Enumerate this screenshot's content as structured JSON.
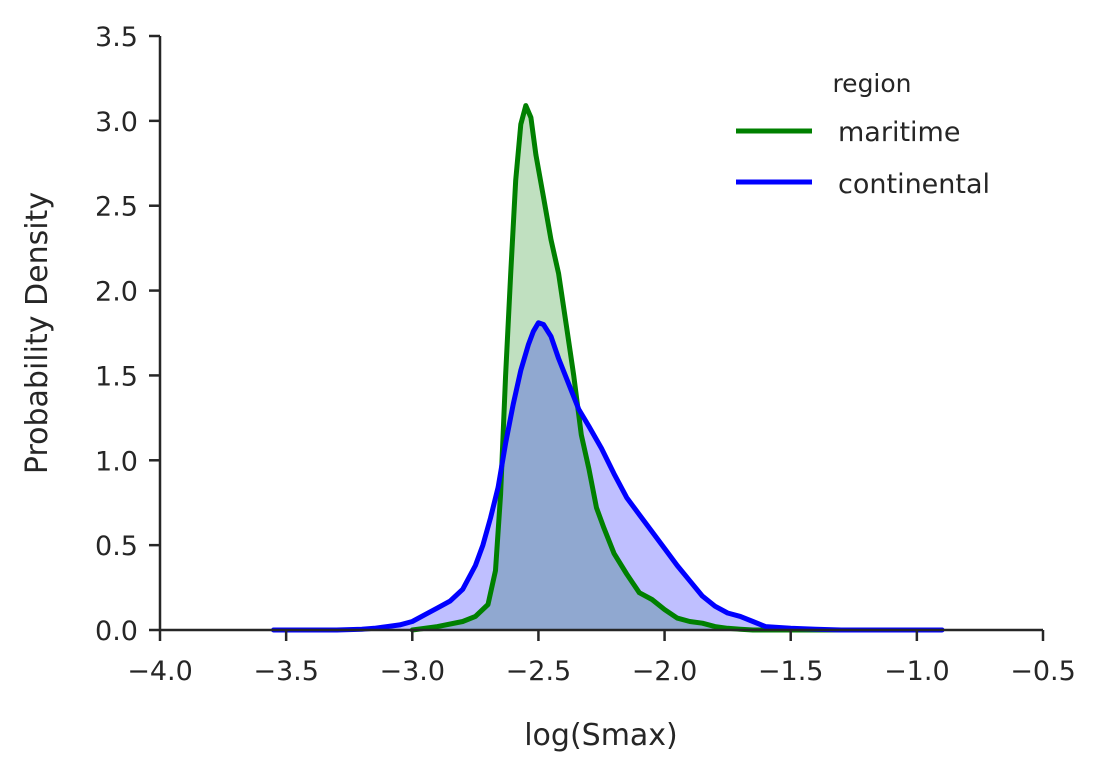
{
  "chart_data": {
    "type": "area",
    "title": "",
    "xlabel": "log(Smax)",
    "ylabel": "Probability Density",
    "xlim": [
      -4.0,
      -0.5
    ],
    "ylim": [
      0.0,
      3.5
    ],
    "xticks": [
      -4.0,
      -3.5,
      -3.0,
      -2.5,
      -2.0,
      -1.5,
      -1.0,
      -0.5
    ],
    "xtick_labels": [
      "−4.0",
      "−3.5",
      "−3.0",
      "−2.5",
      "−2.0",
      "−1.5",
      "−1.0",
      "−0.5"
    ],
    "yticks": [
      0.0,
      0.5,
      1.0,
      1.5,
      2.0,
      2.5,
      3.0,
      3.5
    ],
    "ytick_labels": [
      "0.0",
      "0.5",
      "1.0",
      "1.5",
      "2.0",
      "2.5",
      "3.0",
      "3.5"
    ],
    "grid": false,
    "legend": {
      "title": "region",
      "placement": "top-right"
    },
    "series": [
      {
        "name": "maritime",
        "color": "#008000",
        "fill": "#c0e0c0",
        "x": [
          -3.0,
          -2.9,
          -2.8,
          -2.75,
          -2.7,
          -2.67,
          -2.65,
          -2.63,
          -2.61,
          -2.59,
          -2.57,
          -2.55,
          -2.53,
          -2.51,
          -2.48,
          -2.45,
          -2.42,
          -2.39,
          -2.36,
          -2.33,
          -2.3,
          -2.27,
          -2.24,
          -2.2,
          -2.15,
          -2.1,
          -2.05,
          -2.0,
          -1.95,
          -1.9,
          -1.85,
          -1.8,
          -1.75,
          -1.7,
          -1.65,
          -1.6,
          -1.5,
          -1.4,
          -1.3
        ],
        "y": [
          0.0,
          0.02,
          0.05,
          0.08,
          0.15,
          0.35,
          0.8,
          1.5,
          2.1,
          2.65,
          2.98,
          3.09,
          3.02,
          2.8,
          2.55,
          2.3,
          2.1,
          1.8,
          1.5,
          1.15,
          0.95,
          0.72,
          0.6,
          0.45,
          0.33,
          0.22,
          0.18,
          0.12,
          0.07,
          0.05,
          0.04,
          0.02,
          0.01,
          0.005,
          0.0,
          0.0,
          0.0,
          0.0,
          0.0
        ]
      },
      {
        "name": "continental",
        "color": "#0000ff",
        "fill": "#bfbfff",
        "x": [
          -3.55,
          -3.3,
          -3.2,
          -3.15,
          -3.1,
          -3.05,
          -3.0,
          -2.95,
          -2.9,
          -2.85,
          -2.8,
          -2.75,
          -2.72,
          -2.69,
          -2.66,
          -2.63,
          -2.6,
          -2.57,
          -2.54,
          -2.52,
          -2.5,
          -2.48,
          -2.45,
          -2.42,
          -2.38,
          -2.34,
          -2.3,
          -2.25,
          -2.2,
          -2.15,
          -2.1,
          -2.05,
          -2.0,
          -1.95,
          -1.9,
          -1.85,
          -1.8,
          -1.75,
          -1.7,
          -1.65,
          -1.6,
          -1.5,
          -1.4,
          -1.3,
          -1.1,
          -0.9
        ],
        "y": [
          0.0,
          0.0,
          0.005,
          0.01,
          0.02,
          0.03,
          0.05,
          0.09,
          0.13,
          0.17,
          0.24,
          0.38,
          0.5,
          0.66,
          0.84,
          1.1,
          1.33,
          1.53,
          1.68,
          1.76,
          1.81,
          1.8,
          1.73,
          1.6,
          1.45,
          1.3,
          1.2,
          1.07,
          0.92,
          0.78,
          0.68,
          0.58,
          0.48,
          0.38,
          0.29,
          0.2,
          0.14,
          0.1,
          0.08,
          0.05,
          0.02,
          0.01,
          0.005,
          0.0,
          0.0,
          0.0
        ]
      }
    ]
  }
}
